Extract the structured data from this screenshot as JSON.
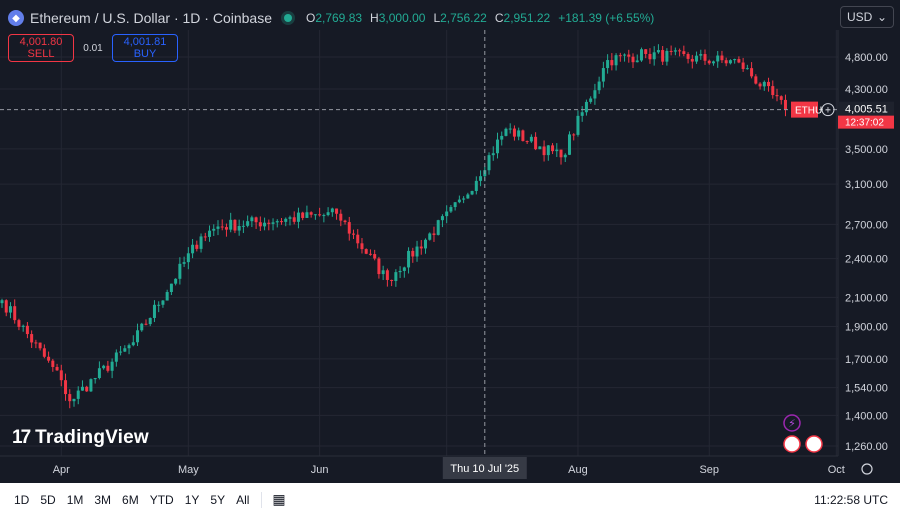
{
  "header": {
    "symbol_icon": "ethereum-icon",
    "title": "Ethereum / U.S. Dollar · 1D · Coinbase",
    "open_label": "O",
    "open": "2,769.83",
    "high_label": "H",
    "high": "3,000.00",
    "low_label": "L",
    "low": "2,756.22",
    "close_label": "C",
    "close": "2,951.22",
    "change": "+181.39 (+6.55%)"
  },
  "trade": {
    "sell_price": "4,001.80",
    "sell_label": "SELL",
    "spread": "0.01",
    "buy_price": "4,001.81",
    "buy_label": "BUY"
  },
  "currency": "USD",
  "watermark": "TradingView",
  "range_buttons": [
    "1D",
    "5D",
    "1M",
    "3M",
    "6M",
    "YTD",
    "1Y",
    "5Y",
    "All"
  ],
  "clock": "11:22:58 UTC",
  "price_tag": {
    "symbol": "ETHU",
    "price": "4,005.51",
    "countdown": "12:37:02"
  },
  "crosshair_label": "Thu 10 Jul '25",
  "colors": {
    "up": "#22ab94",
    "down": "#f23645",
    "background": "#161a25",
    "grid": "#242733",
    "text": "#d1d4dc"
  },
  "chart_data": {
    "type": "candlestick",
    "symbol": "Ethereum / U.S. Dollar",
    "interval": "1D",
    "exchange": "Coinbase",
    "y_axis": {
      "scale": "log",
      "range": [
        1200,
        5200
      ],
      "ticks": [
        "4,800.00",
        "4,300.00",
        "3,500.00",
        "3,100.00",
        "2,700.00",
        "2,400.00",
        "2,100.00",
        "1,900.00",
        "1,700.00",
        "1,540.00",
        "1,400.00",
        "1,260.00"
      ]
    },
    "x_axis": {
      "labels": [
        "Apr",
        "May",
        "Jun",
        "Jul",
        "Aug",
        "Sep",
        "Oct"
      ]
    },
    "grid": true,
    "crosshair": {
      "date": "Thu 10 Jul '25",
      "price": 4005.51
    },
    "last_price": 4005.51,
    "key_closes": [
      {
        "date": "Mar 23",
        "close": 2080
      },
      {
        "date": "Apr 06",
        "close": 1580
      },
      {
        "date": "Apr 08",
        "close": 1470
      },
      {
        "date": "Apr 23",
        "close": 1800
      },
      {
        "date": "May 09",
        "close": 2590
      },
      {
        "date": "May 13",
        "close": 2680
      },
      {
        "date": "Jun 10",
        "close": 2800
      },
      {
        "date": "Jun 22",
        "close": 2230
      },
      {
        "date": "Jul 10",
        "close": 2951.22
      },
      {
        "date": "Jul 20",
        "close": 3750
      },
      {
        "date": "Aug 02",
        "close": 3400
      },
      {
        "date": "Aug 13",
        "close": 4750
      },
      {
        "date": "Aug 22",
        "close": 4850
      },
      {
        "date": "Sep 13",
        "close": 4710
      },
      {
        "date": "Sep 24",
        "close": 4005.51
      }
    ]
  }
}
